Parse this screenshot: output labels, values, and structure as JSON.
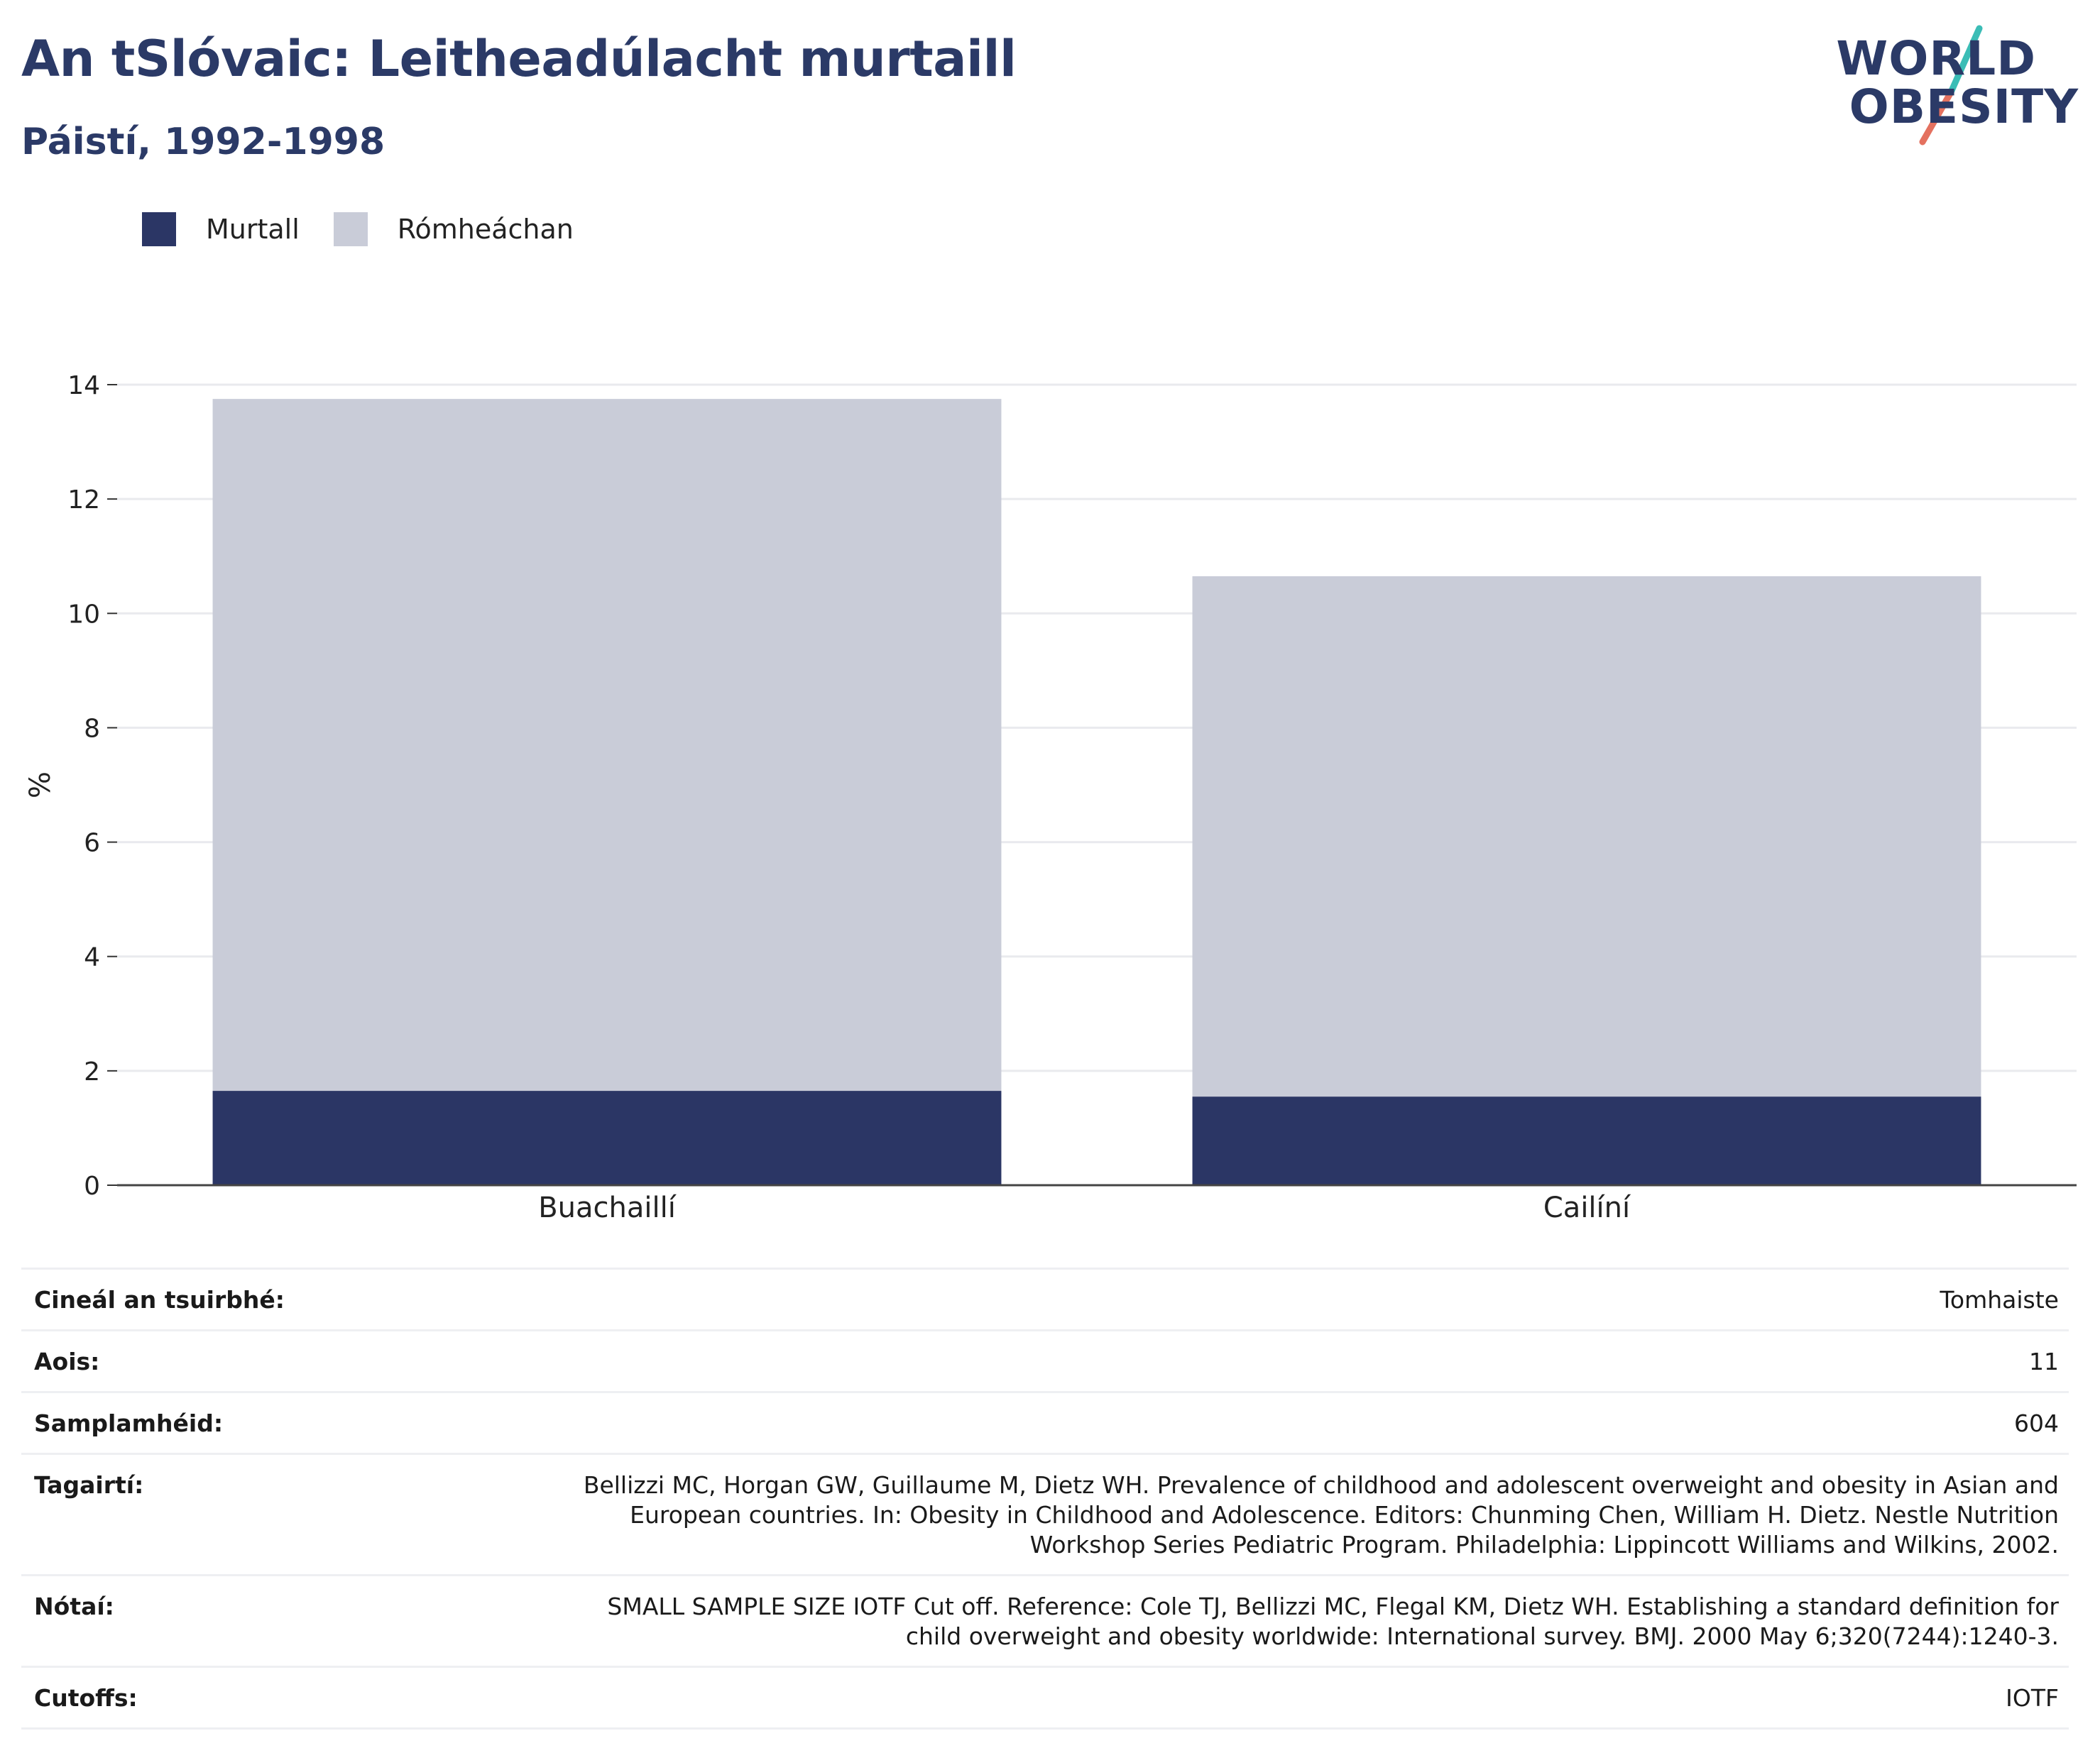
{
  "title": "An tSlóvaic: Leitheadúlacht murtaill",
  "subtitle": "Páistí, 1992-1998",
  "logo": {
    "line1": "WORLD",
    "line2": "OBESITY"
  },
  "legend": [
    {
      "label": "Murtall",
      "color": "#2b3665"
    },
    {
      "label": "Rómheáchan",
      "color": "#c9ccd8"
    }
  ],
  "chart_data": {
    "type": "bar",
    "stacked": true,
    "categories": [
      "Buachaillí",
      "Cailíní"
    ],
    "series": [
      {
        "name": "Murtall",
        "values": [
          1.65,
          1.55
        ],
        "color": "#2b3665"
      },
      {
        "name": "Rómheáchan",
        "values": [
          12.1,
          9.1
        ],
        "color": "#c9ccd8"
      }
    ],
    "ylabel": "%",
    "ylim": [
      0,
      14
    ],
    "yticks": [
      0,
      2,
      4,
      6,
      8,
      10,
      12,
      14
    ],
    "grid": true,
    "legend_position": "top-left"
  },
  "info": [
    {
      "key": "Cineál an tsuirbhé:",
      "value": "Tomhaiste"
    },
    {
      "key": "Aois:",
      "value": "11"
    },
    {
      "key": "Samplamhéid:",
      "value": "604"
    },
    {
      "key": "Tagairtí:",
      "value": "Bellizzi MC, Horgan GW, Guillaume M, Dietz WH. Prevalence of childhood and adolescent overweight and obesity in Asian and European countries. In: Obesity in Childhood and Adolescence. Editors: Chunming Chen, William H. Dietz. Nestle Nutrition Workshop Series Pediatric Program. Philadelphia: Lippincott Williams and Wilkins, 2002."
    },
    {
      "key": "Nótaí:",
      "value": "SMALL SAMPLE SIZE IOTF Cut off. Reference: Cole TJ, Bellizzi MC, Flegal KM, Dietz WH. Establishing a standard definition for child overweight and obesity worldwide: International survey. BMJ. 2000 May 6;320(7244):1240-3."
    },
    {
      "key": "Cutoffs:",
      "value": "IOTF"
    }
  ]
}
